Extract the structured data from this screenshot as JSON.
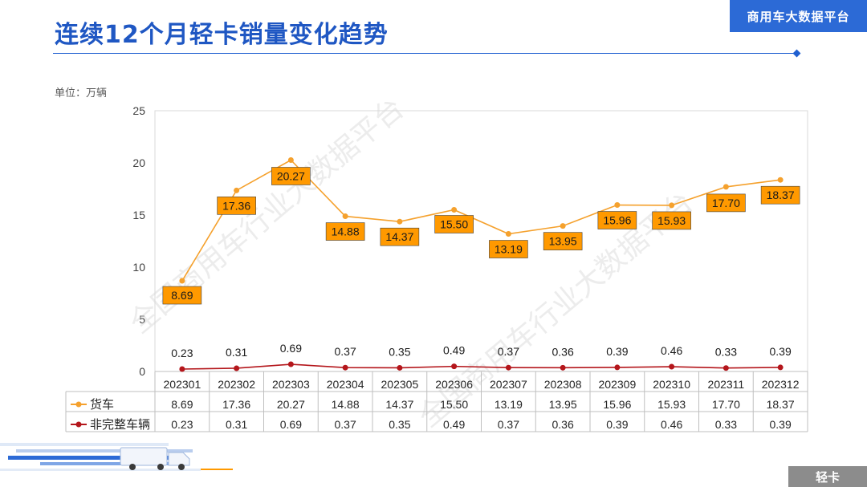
{
  "header": {
    "title": "连续12个月轻卡销量变化趋势",
    "brand": "商用车大数据平台"
  },
  "unit_label": "单位：万辆",
  "footer_tab": "轻卡",
  "watermark": "全国商用车行业大数据平台",
  "colors": {
    "title": "#1f57c3",
    "brand_bg": "#2c6ad6",
    "truck_line": "#f5a12d",
    "truck_label_bg": "#ff9900",
    "incomplete_line": "#b4161b",
    "grid": "#d9d9d9"
  },
  "chart_data": {
    "type": "line",
    "categories": [
      "202301",
      "202302",
      "202303",
      "202304",
      "202305",
      "202306",
      "202307",
      "202308",
      "202309",
      "202310",
      "202311",
      "202312"
    ],
    "series": [
      {
        "name": "货车",
        "values": [
          8.69,
          17.36,
          20.27,
          14.88,
          14.37,
          15.5,
          13.19,
          13.95,
          15.96,
          15.93,
          17.7,
          18.37
        ]
      },
      {
        "name": "非完整车辆",
        "values": [
          0.23,
          0.31,
          0.69,
          0.37,
          0.35,
          0.49,
          0.37,
          0.36,
          0.39,
          0.46,
          0.33,
          0.39
        ]
      }
    ],
    "value_labels": [
      [
        "8.69",
        "17.36",
        "20.27",
        "14.88",
        "14.37",
        "15.50",
        "13.19",
        "13.95",
        "15.96",
        "15.93",
        "17.70",
        "18.37"
      ],
      [
        "0.23",
        "0.31",
        "0.69",
        "0.37",
        "0.35",
        "0.49",
        "0.37",
        "0.36",
        "0.39",
        "0.46",
        "0.33",
        "0.39"
      ]
    ],
    "yticks": [
      "0",
      "5",
      "10",
      "15",
      "20",
      "25"
    ],
    "ylim": [
      0,
      25
    ],
    "ylabel": "万辆",
    "data_table": true
  }
}
